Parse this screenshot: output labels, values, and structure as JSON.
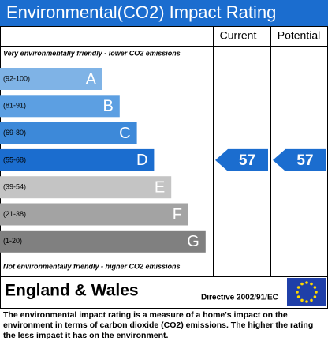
{
  "header": {
    "title": "Environmental(CO2) Impact Rating"
  },
  "columns": {
    "current": "Current",
    "potential": "Potential"
  },
  "top_note": "Very environmentally friendly - lower CO2 emissions",
  "bottom_note": "Not environmentally friendly - higher CO2 emissions",
  "bands": [
    {
      "range": "(92-100)",
      "letter": "A",
      "color": "#7fb3e6"
    },
    {
      "range": "(81-91)",
      "letter": "B",
      "color": "#5c9fe2"
    },
    {
      "range": "(69-80)",
      "letter": "C",
      "color": "#3d89d9"
    },
    {
      "range": "(55-68)",
      "letter": "D",
      "color": "#1b6dcf"
    },
    {
      "range": "(39-54)",
      "letter": "E",
      "color": "#c4c4c4"
    },
    {
      "range": "(21-38)",
      "letter": "F",
      "color": "#a3a3a3"
    },
    {
      "range": "(1-20)",
      "letter": "G",
      "color": "#808080"
    }
  ],
  "ratings": {
    "current": 57,
    "potential": 57,
    "color": "#1b6dcf"
  },
  "region": "England & Wales",
  "directive": "Directive 2002/91/EC",
  "footer": "The environmental impact rating is a measure of a home's impact on the environment in terms of carbon dioxide (CO2) emissions. The higher the rating the less impact it has on the environment."
}
